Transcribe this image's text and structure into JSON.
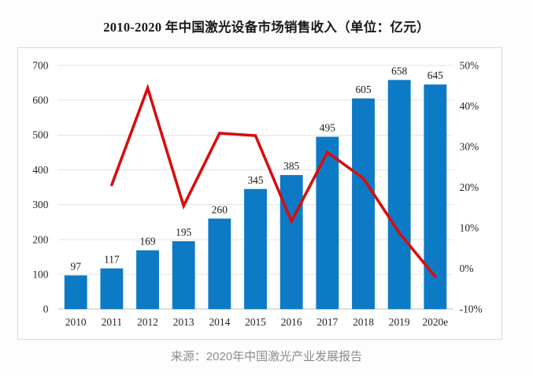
{
  "chart_data": {
    "type": "bar",
    "title": "2010-2020 年中国激光设备市场销售收入（单位：亿元）",
    "source": "来源：2020年中国激光产业发展报告",
    "categories": [
      "2010",
      "2011",
      "2012",
      "2013",
      "2014",
      "2015",
      "2016",
      "2017",
      "2018",
      "2019",
      "2020e"
    ],
    "series": [
      {
        "name": "revenue",
        "type": "bar",
        "values": [
          97,
          117,
          169,
          195,
          260,
          345,
          385,
          495,
          605,
          658,
          645
        ],
        "color": "#0d7ac5"
      },
      {
        "name": "yoy-growth-pct",
        "type": "line",
        "axis": "right",
        "values": [
          null,
          20.6,
          44.4,
          15.4,
          33.3,
          32.7,
          11.6,
          28.6,
          22.2,
          8.8,
          -2.0
        ],
        "color": "#d90d0d"
      }
    ],
    "left_axis": {
      "min": 0,
      "max": 700,
      "step": 100,
      "tick_labels": [
        "0",
        "100",
        "200",
        "300",
        "400",
        "500",
        "600",
        "700"
      ]
    },
    "right_axis": {
      "min": -10,
      "max": 50,
      "step": 10,
      "tick_labels": [
        "-10%",
        "0%",
        "10%",
        "20%",
        "30%",
        "40%",
        "50%"
      ]
    },
    "grid": true,
    "legend": "none",
    "colors": {
      "bar": "#0d7ac5",
      "line": "#d90d0d",
      "gridline": "#e3e3e3",
      "axis_line": "#bdbdbd",
      "text": "#262626",
      "source_text": "#8c8c8c",
      "box_border": "#d9d9d9"
    }
  }
}
